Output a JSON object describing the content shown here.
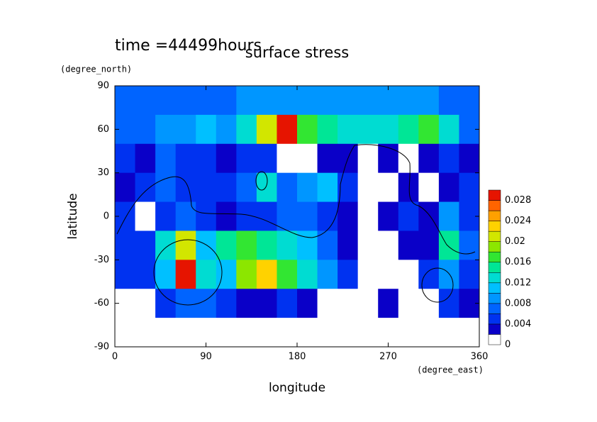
{
  "chart_data": {
    "type": "contour-map",
    "title": "surface stress",
    "subtitle": "time =44499hours",
    "x_label": "longitude",
    "x_unit": "(degree_east)",
    "y_label": "latitude",
    "y_unit": "(degree_north)",
    "xlim": [
      0,
      360
    ],
    "xticks": [
      0,
      90,
      180,
      270,
      360
    ],
    "ylim": [
      -90,
      90
    ],
    "yticks": [
      -90,
      -60,
      -30,
      0,
      30,
      60,
      90
    ],
    "x": [
      10,
      30,
      50,
      70,
      90,
      110,
      130,
      150,
      170,
      190,
      210,
      230,
      250,
      270,
      290,
      310,
      330,
      350
    ],
    "y": [
      80,
      60,
      40,
      20,
      0,
      -20,
      -40,
      -60,
      -80
    ],
    "z": [
      [
        0.006,
        0.006,
        0.007,
        0.006,
        0.006,
        0.007,
        0.008,
        0.008,
        0.009,
        0.009,
        0.009,
        0.008,
        0.008,
        0.009,
        0.009,
        0.008,
        0.007,
        0.007
      ],
      [
        0.006,
        0.007,
        0.008,
        0.008,
        0.01,
        0.009,
        0.012,
        0.02,
        0.028,
        0.016,
        0.014,
        0.013,
        0.012,
        0.012,
        0.014,
        0.016,
        0.012,
        0.006
      ],
      [
        0.004,
        0.003,
        0.006,
        0.004,
        0.005,
        0.003,
        0.004,
        0.004,
        0.001,
        0.001,
        0.003,
        0.003,
        0.001,
        0.003,
        0.001,
        0.003,
        0.004,
        0.003
      ],
      [
        0.003,
        0.004,
        0.006,
        0.004,
        0.004,
        0.005,
        0.006,
        0.012,
        0.006,
        0.008,
        0.01,
        0.004,
        0.001,
        0.001,
        0.003,
        0.001,
        0.003,
        0.004
      ],
      [
        0.004,
        0.001,
        0.004,
        0.006,
        0.004,
        0.003,
        0.004,
        0.005,
        0.006,
        0.006,
        0.005,
        0.003,
        0.001,
        0.003,
        0.004,
        0.003,
        0.008,
        0.005
      ],
      [
        0.005,
        0.005,
        0.012,
        0.02,
        0.01,
        0.014,
        0.016,
        0.014,
        0.012,
        0.01,
        0.006,
        0.003,
        0.001,
        0.001,
        0.003,
        0.003,
        0.014,
        0.006
      ],
      [
        0.004,
        0.004,
        0.01,
        0.03,
        0.012,
        0.01,
        0.018,
        0.022,
        0.016,
        0.012,
        0.008,
        0.004,
        0.001,
        0.001,
        0.001,
        0.004,
        0.008,
        0.005
      ],
      [
        0.001,
        0.001,
        0.004,
        0.006,
        0.006,
        0.004,
        0.003,
        0.003,
        0.004,
        0.003,
        0.001,
        0.001,
        0.001,
        0.002,
        0.001,
        0.001,
        0.004,
        0.003
      ],
      [
        0,
        0,
        0,
        0,
        0,
        0,
        0,
        0,
        0,
        0,
        0,
        0,
        0,
        0,
        0,
        0,
        0,
        0
      ]
    ],
    "colorbar": {
      "bounds": [
        0,
        0.002,
        0.004,
        0.006,
        0.008,
        0.01,
        0.012,
        0.014,
        0.016,
        0.018,
        0.02,
        0.022,
        0.024,
        0.026,
        0.028,
        0.03
      ],
      "colors": [
        "#ffffff",
        "#0a00c8",
        "#0032f0",
        "#0064ff",
        "#0096ff",
        "#00c0ff",
        "#00dcd2",
        "#00e696",
        "#32e632",
        "#8ce600",
        "#d2e600",
        "#ffd200",
        "#ffa000",
        "#ff6400",
        "#e61400"
      ],
      "ticks": [
        0,
        0.004,
        0.008,
        0.012,
        0.016,
        0.02,
        0.024,
        0.028
      ]
    }
  }
}
